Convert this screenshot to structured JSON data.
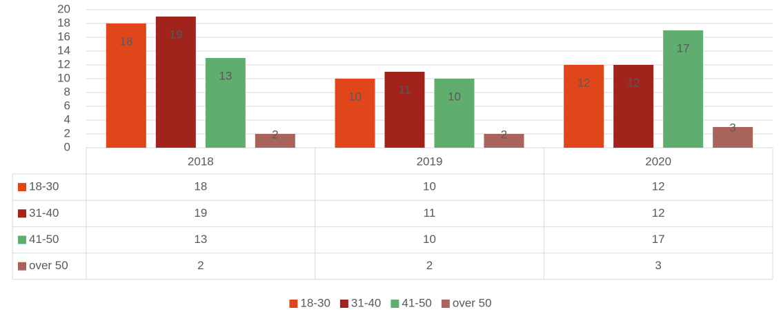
{
  "chart_data": {
    "type": "bar",
    "categories": [
      "2018",
      "2019",
      "2020"
    ],
    "series": [
      {
        "name": "18-30",
        "color": "#e0461a",
        "values": [
          18,
          10,
          12
        ]
      },
      {
        "name": "31-40",
        "color": "#a2231b",
        "values": [
          19,
          11,
          12
        ]
      },
      {
        "name": "41-50",
        "color": "#5fae6e",
        "values": [
          13,
          10,
          17
        ]
      },
      {
        "name": "over 50",
        "color": "#a8645a",
        "values": [
          2,
          2,
          3
        ]
      }
    ],
    "ylim": [
      0,
      20
    ],
    "yticks": [
      0,
      2,
      4,
      6,
      8,
      10,
      12,
      14,
      16,
      18,
      20
    ],
    "grid": true,
    "data_table": true,
    "legend": "bottom"
  }
}
